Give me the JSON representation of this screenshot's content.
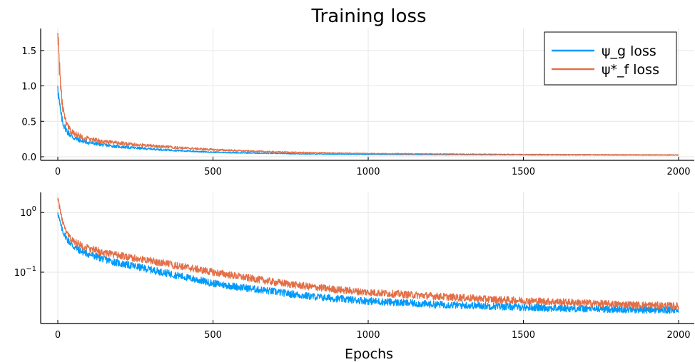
{
  "chart_data": [
    {
      "type": "line",
      "title": "Training loss",
      "xlabel": "",
      "ylabel": "",
      "xlim": [
        0,
        2000
      ],
      "ylim": [
        0,
        1.8
      ],
      "yscale": "linear",
      "xticks": [
        "0",
        "500",
        "1000",
        "1500",
        "2000"
      ],
      "yticks": [
        "0.0",
        "0.5",
        "1.0",
        "1.5"
      ],
      "grid": true,
      "legend": "top-right",
      "series": [
        {
          "name": "ψ_g loss",
          "color": "#009AFA",
          "x": [
            0,
            3,
            6,
            10,
            15,
            20,
            30,
            40,
            50,
            75,
            100,
            150,
            200,
            250,
            300,
            400,
            500,
            600,
            700,
            800,
            900,
            1000,
            1200,
            1400,
            1600,
            1800,
            2000
          ],
          "y": [
            1.0,
            0.85,
            0.72,
            0.6,
            0.5,
            0.44,
            0.36,
            0.31,
            0.27,
            0.225,
            0.2,
            0.165,
            0.14,
            0.125,
            0.11,
            0.085,
            0.065,
            0.055,
            0.047,
            0.04,
            0.036,
            0.033,
            0.029,
            0.027,
            0.025,
            0.024,
            0.023
          ]
        },
        {
          "name": "ψ*_f loss",
          "color": "#E36F47",
          "x": [
            0,
            3,
            6,
            10,
            15,
            20,
            30,
            40,
            50,
            75,
            100,
            150,
            200,
            250,
            300,
            400,
            500,
            600,
            700,
            800,
            900,
            1000,
            1200,
            1400,
            1600,
            1800,
            2000
          ],
          "y": [
            1.75,
            1.5,
            1.2,
            0.95,
            0.72,
            0.58,
            0.44,
            0.37,
            0.33,
            0.28,
            0.25,
            0.21,
            0.19,
            0.17,
            0.155,
            0.125,
            0.1,
            0.082,
            0.068,
            0.058,
            0.051,
            0.046,
            0.04,
            0.035,
            0.032,
            0.029,
            0.027
          ]
        }
      ]
    },
    {
      "type": "line",
      "title": "",
      "xlabel": "Epochs",
      "ylabel": "",
      "xlim": [
        0,
        2000
      ],
      "ylim": [
        0.015,
        2.0
      ],
      "yscale": "log",
      "xticks": [
        "0",
        "500",
        "1000",
        "1500",
        "2000"
      ],
      "yticks": [
        {
          "base": "10",
          "exp": "0",
          "value": 1
        },
        {
          "base": "10",
          "exp": "−1",
          "value": 0.1
        }
      ],
      "grid": true,
      "series": [
        {
          "name": "ψ_g loss",
          "color": "#009AFA",
          "x": [
            0,
            3,
            6,
            10,
            15,
            20,
            30,
            40,
            50,
            75,
            100,
            150,
            200,
            250,
            300,
            400,
            500,
            600,
            700,
            800,
            900,
            1000,
            1200,
            1400,
            1600,
            1800,
            2000
          ],
          "y": [
            1.0,
            0.85,
            0.72,
            0.6,
            0.5,
            0.44,
            0.36,
            0.31,
            0.27,
            0.225,
            0.2,
            0.165,
            0.14,
            0.125,
            0.11,
            0.085,
            0.065,
            0.055,
            0.047,
            0.04,
            0.036,
            0.033,
            0.029,
            0.027,
            0.025,
            0.024,
            0.023
          ]
        },
        {
          "name": "ψ*_f loss",
          "color": "#E36F47",
          "x": [
            0,
            3,
            6,
            10,
            15,
            20,
            30,
            40,
            50,
            75,
            100,
            150,
            200,
            250,
            300,
            400,
            500,
            600,
            700,
            800,
            900,
            1000,
            1200,
            1400,
            1600,
            1800,
            2000
          ],
          "y": [
            1.75,
            1.5,
            1.2,
            0.95,
            0.72,
            0.58,
            0.44,
            0.37,
            0.33,
            0.28,
            0.25,
            0.21,
            0.19,
            0.17,
            0.155,
            0.125,
            0.1,
            0.082,
            0.068,
            0.058,
            0.051,
            0.046,
            0.04,
            0.035,
            0.032,
            0.029,
            0.027
          ]
        }
      ]
    }
  ]
}
